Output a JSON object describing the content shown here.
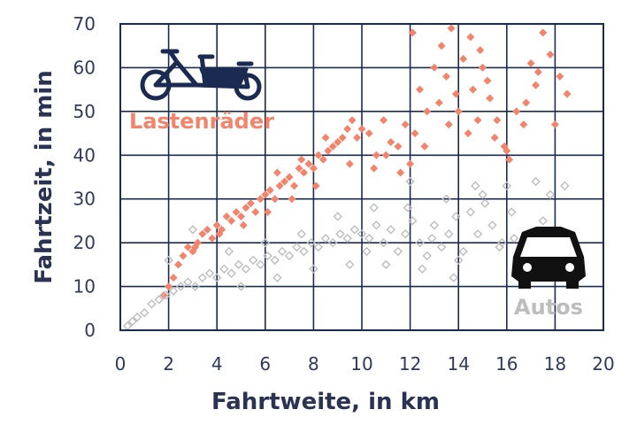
{
  "chart_data": {
    "type": "scatter",
    "title": "",
    "xlabel": "Fahrtweite, in km",
    "ylabel": "Fahrtzeit, in min",
    "xlim": [
      0,
      20
    ],
    "ylim": [
      0,
      70
    ],
    "x_ticks": [
      "0",
      "2",
      "4",
      "6",
      "8",
      "10",
      "12",
      "14",
      "16",
      "18",
      "20"
    ],
    "y_ticks": [
      "0",
      "10",
      "20",
      "30",
      "40",
      "50",
      "60",
      "70"
    ],
    "grid": true,
    "series": [
      {
        "name": "Lastenräder",
        "color": "#f4836b",
        "marker": "filled-diamond",
        "icon": "cargo-bike-icon",
        "points": [
          [
            1.8,
            8
          ],
          [
            2.0,
            10
          ],
          [
            2.2,
            12
          ],
          [
            2.4,
            15
          ],
          [
            2.6,
            17
          ],
          [
            2.8,
            19
          ],
          [
            3.0,
            18
          ],
          [
            3.2,
            20
          ],
          [
            3.4,
            22
          ],
          [
            3.6,
            23
          ],
          [
            3.8,
            21
          ],
          [
            4.0,
            24
          ],
          [
            4.2,
            23
          ],
          [
            4.4,
            26
          ],
          [
            4.6,
            25
          ],
          [
            4.8,
            27
          ],
          [
            5.0,
            26
          ],
          [
            5.2,
            28
          ],
          [
            5.4,
            29
          ],
          [
            5.6,
            27
          ],
          [
            5.8,
            30
          ],
          [
            6.0,
            31
          ],
          [
            6.2,
            32
          ],
          [
            6.4,
            30
          ],
          [
            6.6,
            33
          ],
          [
            6.8,
            34
          ],
          [
            7.0,
            35
          ],
          [
            7.2,
            33
          ],
          [
            7.4,
            37
          ],
          [
            7.6,
            36
          ],
          [
            7.8,
            38
          ],
          [
            8.0,
            37
          ],
          [
            8.2,
            40
          ],
          [
            8.4,
            39
          ],
          [
            8.6,
            41
          ],
          [
            8.8,
            42
          ],
          [
            9.0,
            43
          ],
          [
            9.2,
            44
          ],
          [
            9.4,
            46
          ],
          [
            9.6,
            48
          ],
          [
            9.8,
            44
          ],
          [
            10.0,
            46
          ],
          [
            10.3,
            45
          ],
          [
            10.6,
            40
          ],
          [
            10.9,
            48
          ],
          [
            11.2,
            43
          ],
          [
            11.5,
            42
          ],
          [
            11.8,
            47
          ],
          [
            12.0,
            38
          ],
          [
            12.2,
            45
          ],
          [
            12.4,
            55
          ],
          [
            12.7,
            50
          ],
          [
            13.0,
            60
          ],
          [
            13.2,
            52
          ],
          [
            13.5,
            58
          ],
          [
            13.7,
            69
          ],
          [
            14.0,
            50
          ],
          [
            14.2,
            62
          ],
          [
            14.4,
            45
          ],
          [
            14.6,
            55
          ],
          [
            14.8,
            48
          ],
          [
            15.0,
            60
          ],
          [
            15.3,
            53
          ],
          [
            15.6,
            48
          ],
          [
            15.9,
            42
          ],
          [
            16.1,
            39
          ],
          [
            16.4,
            50
          ],
          [
            16.7,
            47
          ],
          [
            17.0,
            61
          ],
          [
            17.3,
            59
          ],
          [
            17.5,
            68
          ],
          [
            17.8,
            63
          ],
          [
            18.0,
            47
          ],
          [
            18.2,
            58
          ],
          [
            18.5,
            54
          ],
          [
            12.1,
            68
          ],
          [
            13.3,
            65
          ],
          [
            14.5,
            67
          ],
          [
            15.2,
            57
          ],
          [
            16.8,
            52
          ],
          [
            3.1,
            19
          ],
          [
            4.1,
            22
          ],
          [
            5.1,
            24
          ],
          [
            6.1,
            27
          ],
          [
            7.1,
            30
          ],
          [
            8.1,
            33
          ],
          [
            6.5,
            36
          ],
          [
            7.5,
            39
          ],
          [
            8.5,
            44
          ],
          [
            9.5,
            38
          ],
          [
            10.5,
            37
          ],
          [
            11.0,
            40
          ],
          [
            11.6,
            36
          ],
          [
            12.6,
            42
          ],
          [
            13.6,
            47
          ],
          [
            15.5,
            44
          ],
          [
            16.0,
            41
          ],
          [
            13.9,
            54
          ],
          [
            17.2,
            56
          ],
          [
            14.9,
            64
          ]
        ]
      },
      {
        "name": "Autos",
        "color": "#bdbdbd",
        "marker": "hollow-diamond",
        "icon": "car-icon",
        "points": [
          [
            0.3,
            1
          ],
          [
            0.5,
            2
          ],
          [
            0.7,
            3
          ],
          [
            1.0,
            4
          ],
          [
            1.3,
            6
          ],
          [
            1.6,
            7
          ],
          [
            1.9,
            8
          ],
          [
            2.2,
            9
          ],
          [
            2.5,
            10
          ],
          [
            2.8,
            11
          ],
          [
            3.1,
            10
          ],
          [
            3.4,
            12
          ],
          [
            3.7,
            13
          ],
          [
            4.0,
            12
          ],
          [
            4.3,
            14
          ],
          [
            4.6,
            13
          ],
          [
            4.9,
            15
          ],
          [
            5.2,
            14
          ],
          [
            5.5,
            16
          ],
          [
            5.8,
            15
          ],
          [
            6.1,
            17
          ],
          [
            6.4,
            16
          ],
          [
            6.7,
            18
          ],
          [
            7.0,
            17
          ],
          [
            7.3,
            19
          ],
          [
            7.6,
            18
          ],
          [
            7.9,
            20
          ],
          [
            8.2,
            19
          ],
          [
            8.5,
            21
          ],
          [
            8.8,
            20
          ],
          [
            9.1,
            22
          ],
          [
            9.4,
            21
          ],
          [
            9.7,
            23
          ],
          [
            10.0,
            22
          ],
          [
            10.3,
            21
          ],
          [
            10.6,
            24
          ],
          [
            10.9,
            20
          ],
          [
            11.2,
            23
          ],
          [
            11.5,
            18
          ],
          [
            11.8,
            22
          ],
          [
            12.1,
            25
          ],
          [
            12.4,
            20
          ],
          [
            12.7,
            17
          ],
          [
            13.0,
            24
          ],
          [
            13.3,
            19
          ],
          [
            13.6,
            22
          ],
          [
            13.9,
            26
          ],
          [
            14.2,
            18
          ],
          [
            14.5,
            27
          ],
          [
            14.8,
            22
          ],
          [
            15.1,
            29
          ],
          [
            15.4,
            24
          ],
          [
            15.7,
            19
          ],
          [
            16.0,
            33
          ],
          [
            16.3,
            21
          ],
          [
            16.6,
            18
          ],
          [
            16.9,
            17
          ],
          [
            17.2,
            34
          ],
          [
            17.5,
            25
          ],
          [
            17.8,
            31
          ],
          [
            18.1,
            22
          ],
          [
            18.4,
            33
          ],
          [
            3.0,
            23
          ],
          [
            2.0,
            16
          ],
          [
            4.5,
            18
          ],
          [
            6.0,
            20
          ],
          [
            7.5,
            22
          ],
          [
            9.0,
            26
          ],
          [
            10.5,
            28
          ],
          [
            12.0,
            34
          ],
          [
            13.5,
            30
          ],
          [
            15.0,
            31
          ],
          [
            11.0,
            15
          ],
          [
            12.5,
            14
          ],
          [
            14.0,
            16
          ],
          [
            9.5,
            15
          ],
          [
            8.0,
            14
          ],
          [
            6.5,
            12
          ],
          [
            5.0,
            10
          ],
          [
            14.7,
            33
          ],
          [
            11.9,
            28
          ],
          [
            10.2,
            18
          ],
          [
            13.8,
            12
          ],
          [
            15.8,
            20
          ],
          [
            12.9,
            21
          ],
          [
            16.2,
            27
          ]
        ]
      }
    ]
  }
}
